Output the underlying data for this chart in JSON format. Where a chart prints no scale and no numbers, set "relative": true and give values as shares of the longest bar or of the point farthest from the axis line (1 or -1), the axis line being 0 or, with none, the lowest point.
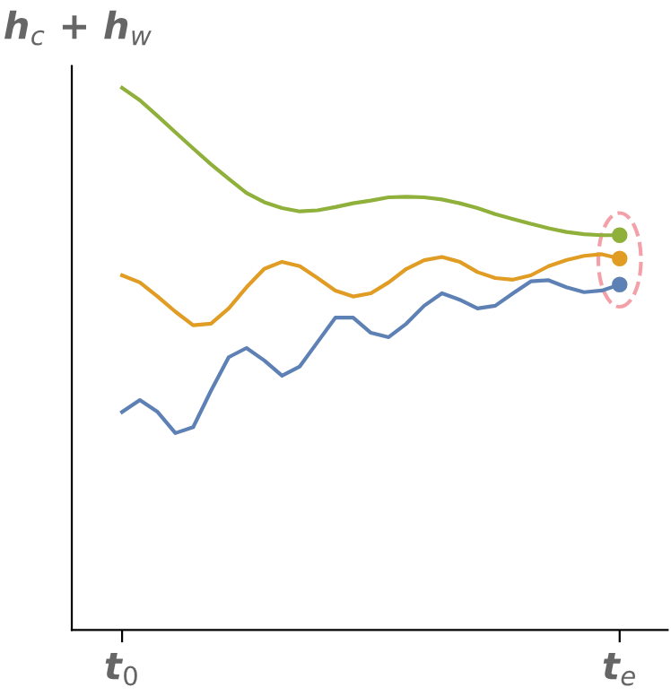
{
  "chart_data": {
    "type": "line",
    "relative": true,
    "ylabel": "h$_{c}$ + h$_{w}$",
    "tick_labels": "x",
    "grid": false,
    "legend": false,
    "line_style": "solid",
    "categories": [
      "t$_{0}$",
      null,
      null,
      null,
      null,
      null,
      null,
      null,
      null,
      null,
      null,
      null,
      null,
      null,
      null,
      null,
      null,
      null,
      null,
      null,
      null,
      null,
      null,
      null,
      null,
      null,
      null,
      null,
      "t$_{e}$"
    ],
    "series": [
      {
        "color": "#8fb03a",
        "values": [
          1.0,
          0.977,
          0.948,
          0.918,
          0.888,
          0.859,
          0.832,
          0.806,
          0.789,
          0.778,
          0.772,
          0.774,
          0.78,
          0.787,
          0.792,
          0.798,
          0.799,
          0.798,
          0.794,
          0.787,
          0.778,
          0.767,
          0.758,
          0.749,
          0.741,
          0.734,
          0.73,
          0.728,
          0.728
        ]
      },
      {
        "color": "#e19c24",
        "values": [
          0.654,
          0.641,
          0.615,
          0.587,
          0.562,
          0.565,
          0.593,
          0.632,
          0.666,
          0.679,
          0.671,
          0.649,
          0.626,
          0.615,
          0.621,
          0.641,
          0.666,
          0.682,
          0.688,
          0.679,
          0.66,
          0.649,
          0.646,
          0.654,
          0.671,
          0.682,
          0.69,
          0.693,
          0.685
        ]
      },
      {
        "color": "#5e81b5",
        "values": [
          0.402,
          0.424,
          0.402,
          0.363,
          0.374,
          0.441,
          0.503,
          0.52,
          0.497,
          0.469,
          0.486,
          0.531,
          0.576,
          0.576,
          0.548,
          0.54,
          0.565,
          0.598,
          0.621,
          0.609,
          0.593,
          0.598,
          0.621,
          0.643,
          0.645,
          0.632,
          0.623,
          0.626,
          0.637
        ]
      },
      {
        "type": "scatter",
        "marker": "circle",
        "color": "#8fb03a",
        "x": [
          "t$_{e}$"
        ],
        "values": [
          0.728
        ]
      },
      {
        "type": "scatter",
        "marker": "circle",
        "color": "#e19c24",
        "x": [
          "t$_{e}$"
        ],
        "values": [
          0.685
        ]
      },
      {
        "type": "scatter",
        "marker": "circle",
        "color": "#5e81b5",
        "x": [
          "t$_{e}$"
        ],
        "values": [
          0.637
        ]
      }
    ]
  }
}
